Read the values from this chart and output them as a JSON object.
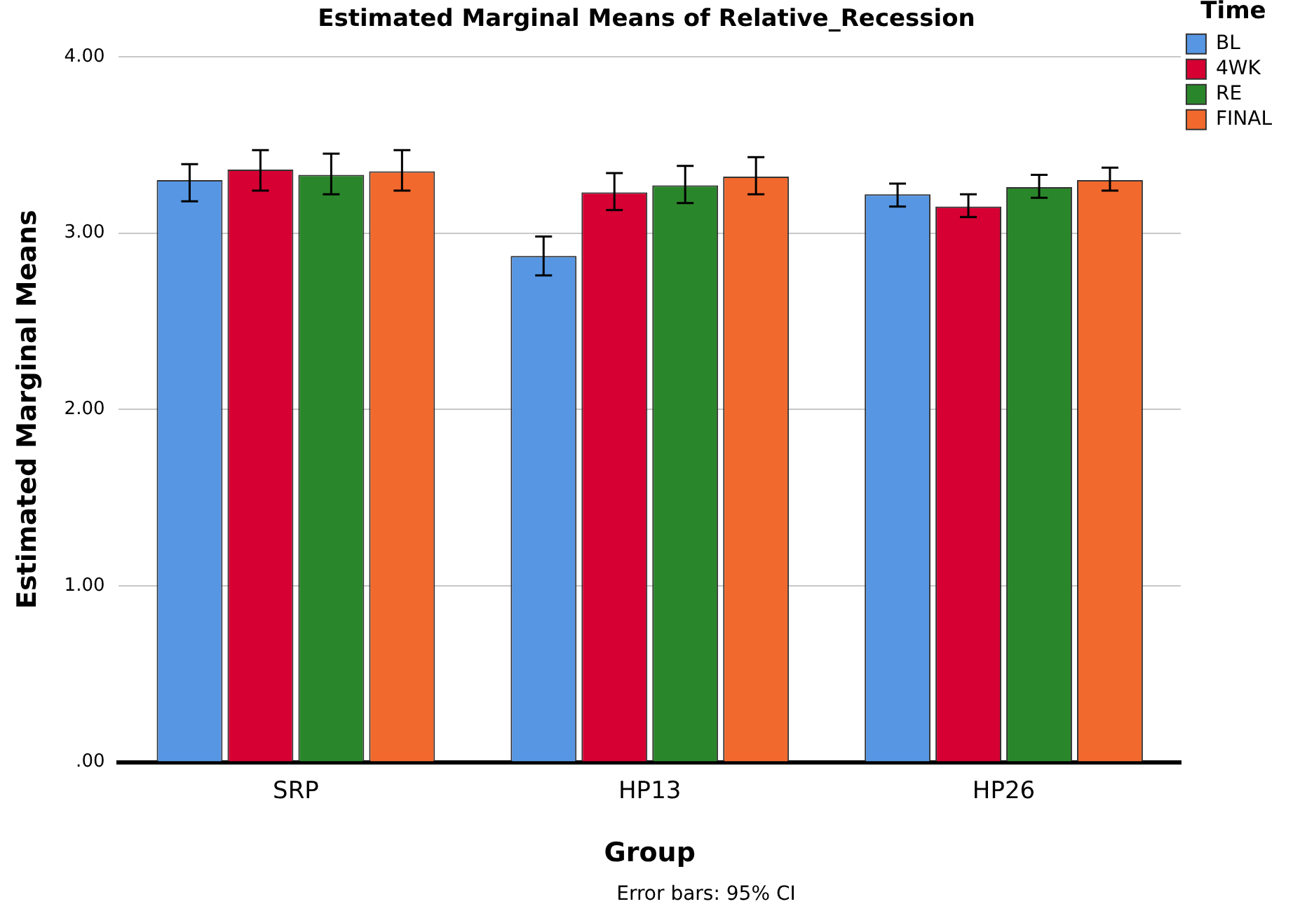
{
  "chart_data": {
    "type": "bar",
    "title": "Estimated Marginal Means of Relative_Recession",
    "xlabel": "Group",
    "ylabel": "Estimated Marginal Means",
    "legend_title": "Time",
    "categories": [
      "SRP",
      "HP13",
      "HP26"
    ],
    "series": [
      {
        "name": "BL",
        "color": "#5796e3",
        "values": [
          3.3,
          2.87,
          3.22
        ],
        "errors": [
          [
            3.18,
            3.39
          ],
          [
            2.76,
            2.98
          ],
          [
            3.15,
            3.28
          ]
        ]
      },
      {
        "name": "4WK",
        "color": "#d60032",
        "values": [
          3.36,
          3.23,
          3.15
        ],
        "errors": [
          [
            3.24,
            3.47
          ],
          [
            3.13,
            3.34
          ],
          [
            3.09,
            3.22
          ]
        ]
      },
      {
        "name": "RE",
        "color": "#2a862a",
        "values": [
          3.33,
          3.27,
          3.26
        ],
        "errors": [
          [
            3.22,
            3.45
          ],
          [
            3.17,
            3.38
          ],
          [
            3.2,
            3.33
          ]
        ]
      },
      {
        "name": "FINAL",
        "color": "#f2692d",
        "values": [
          3.35,
          3.32,
          3.3
        ],
        "errors": [
          [
            3.24,
            3.47
          ],
          [
            3.22,
            3.43
          ],
          [
            3.24,
            3.37
          ]
        ]
      }
    ],
    "ylim": [
      0,
      4
    ],
    "yticks": [
      {
        "value": 0,
        "label": ".00"
      },
      {
        "value": 1,
        "label": "1.00"
      },
      {
        "value": 2,
        "label": "2.00"
      },
      {
        "value": 3,
        "label": "3.00"
      },
      {
        "value": 4,
        "label": "4.00"
      }
    ],
    "grid": "y",
    "legend": "top right",
    "annotations": [
      "Error bars: 95% CI"
    ]
  }
}
